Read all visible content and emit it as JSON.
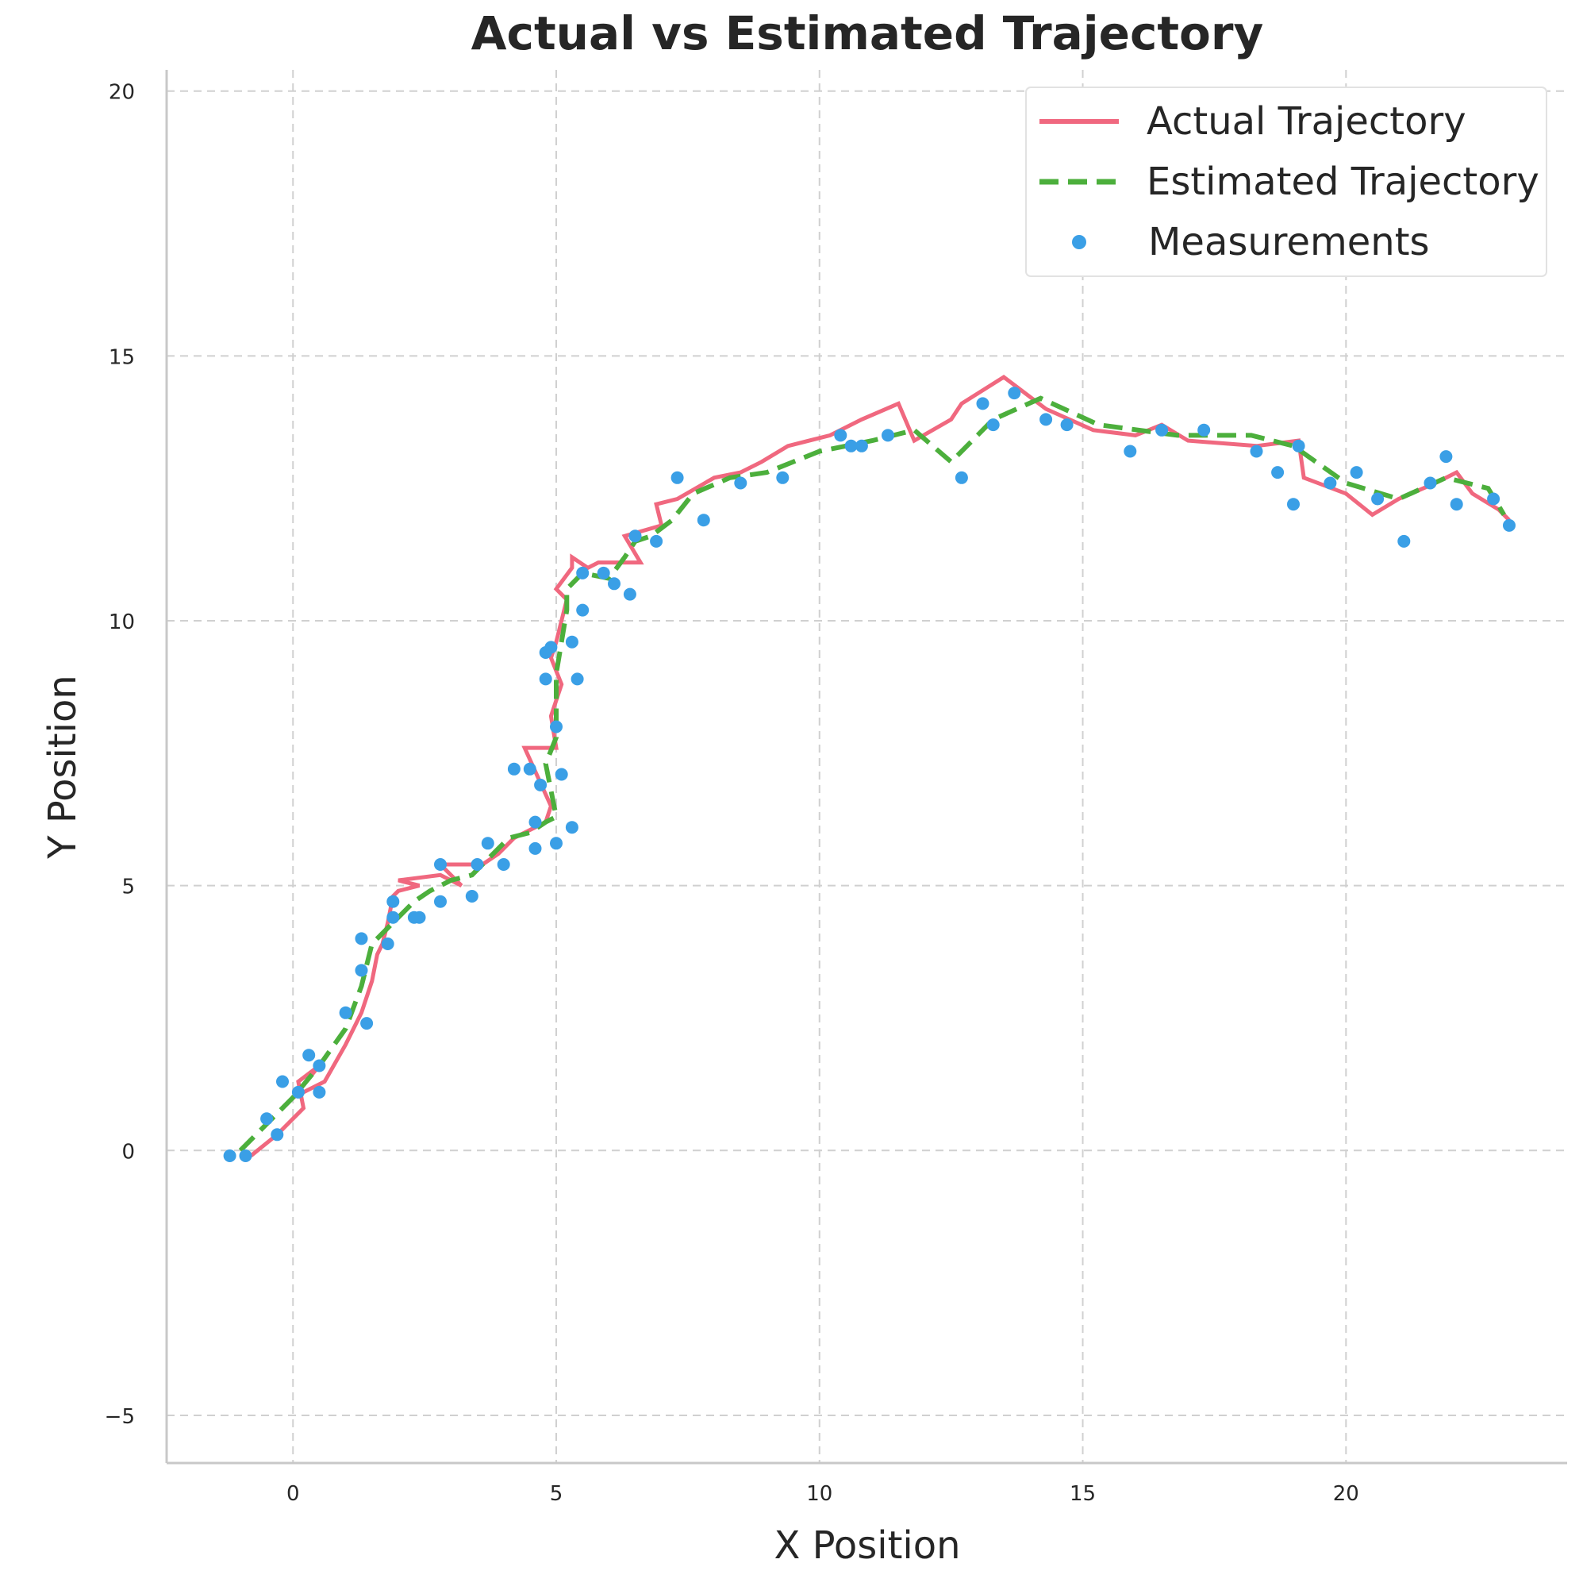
{
  "chart_data": {
    "type": "line",
    "title": "Actual vs Estimated Trajectory",
    "xlabel": "X Position",
    "ylabel": "Y Position",
    "xlim": [
      -2.4,
      24.2
    ],
    "ylim": [
      -5.9,
      20.4
    ],
    "x_ticks": [
      0,
      5,
      10,
      15,
      20
    ],
    "y_ticks": [
      -5,
      0,
      5,
      10,
      15,
      20
    ],
    "x_tick_labels": [
      "0",
      "5",
      "10",
      "15",
      "20"
    ],
    "y_tick_labels": [
      "−5",
      "0",
      "5",
      "10",
      "15",
      "20"
    ],
    "grid": true,
    "legend_position": "top-right",
    "colors": {
      "actual": "#f0687f",
      "estimated": "#4caf3c",
      "measurements": "#3a9fe6"
    },
    "series": [
      {
        "name": "Actual Trajectory",
        "kind": "line",
        "x": [
          -0.8,
          -0.3,
          0.2,
          0.1,
          0.5,
          0.0,
          0.6,
          1.0,
          1.3,
          1.5,
          1.6,
          1.7,
          1.8,
          1.9,
          2.0,
          2.4,
          2.0,
          2.8,
          3.2,
          2.8,
          3.6,
          3.9,
          4.2,
          4.4,
          4.8,
          4.9,
          4.4,
          5.0,
          4.9,
          5.1,
          4.9,
          5.0,
          5.2,
          5.0,
          5.3,
          5.3,
          5.6,
          5.8,
          6.6,
          6.3,
          7.0,
          6.9,
          7.3,
          8.0,
          8.5,
          8.9,
          9.4,
          10.2,
          10.8,
          11.5,
          11.8,
          12.5,
          12.7,
          13.5,
          14.3,
          15.2,
          16.0,
          16.5,
          17.0,
          18.3,
          19.1,
          19.2,
          20.0,
          20.5,
          21.0,
          21.7,
          22.1,
          22.4,
          22.9,
          23.1
        ],
        "y": [
          -0.1,
          0.3,
          0.8,
          1.3,
          1.6,
          1.0,
          1.3,
          2.0,
          2.6,
          3.2,
          3.7,
          3.9,
          4.3,
          4.8,
          4.9,
          5.0,
          5.1,
          5.2,
          5.0,
          5.4,
          5.4,
          5.6,
          5.9,
          6.0,
          6.2,
          6.5,
          7.6,
          7.6,
          8.2,
          8.8,
          9.3,
          9.6,
          10.4,
          10.6,
          11.0,
          11.2,
          11.0,
          11.1,
          11.1,
          11.6,
          11.8,
          12.2,
          12.3,
          12.7,
          12.8,
          13.0,
          13.3,
          13.5,
          13.8,
          14.1,
          13.4,
          13.8,
          14.1,
          14.6,
          14.0,
          13.6,
          13.5,
          13.7,
          13.4,
          13.3,
          13.4,
          12.7,
          12.4,
          12.0,
          12.3,
          12.6,
          12.8,
          12.4,
          12.1,
          11.9
        ]
      },
      {
        "name": "Estimated Trajectory",
        "kind": "dashed-line",
        "x": [
          -1.0,
          -0.5,
          0.0,
          0.5,
          1.0,
          1.3,
          1.5,
          1.9,
          2.3,
          2.6,
          3.0,
          3.4,
          3.7,
          4.1,
          4.5,
          4.8,
          5.0,
          4.8,
          5.0,
          5.0,
          5.2,
          5.2,
          5.5,
          6.0,
          6.3,
          6.5,
          6.8,
          7.2,
          7.6,
          8.3,
          9.0,
          10.0,
          11.0,
          11.8,
          12.5,
          13.3,
          14.2,
          15.3,
          16.8,
          18.2,
          19.0,
          20.0,
          21.0,
          21.9,
          22.7,
          23.0
        ],
        "y": [
          0.0,
          0.5,
          1.0,
          1.6,
          2.3,
          3.1,
          3.9,
          4.3,
          4.7,
          4.9,
          5.1,
          5.2,
          5.5,
          5.9,
          6.0,
          6.2,
          6.3,
          7.3,
          7.8,
          9.0,
          10.2,
          10.6,
          10.9,
          10.8,
          11.2,
          11.5,
          11.6,
          11.9,
          12.4,
          12.7,
          12.8,
          13.2,
          13.4,
          13.6,
          13.0,
          13.8,
          14.2,
          13.7,
          13.5,
          13.5,
          13.3,
          12.6,
          12.3,
          12.7,
          12.5,
          12.0
        ]
      },
      {
        "name": "Measurements",
        "kind": "scatter",
        "x": [
          -1.2,
          -0.9,
          -0.5,
          -0.3,
          -0.2,
          0.1,
          0.3,
          0.5,
          0.5,
          1.0,
          1.3,
          1.3,
          1.4,
          1.8,
          1.9,
          1.9,
          2.3,
          2.4,
          2.8,
          2.8,
          3.4,
          3.5,
          3.7,
          4.0,
          4.2,
          4.5,
          4.6,
          4.6,
          4.7,
          4.8,
          4.8,
          4.9,
          5.0,
          5.0,
          5.1,
          5.3,
          5.3,
          5.4,
          5.5,
          5.5,
          5.9,
          6.1,
          6.4,
          6.5,
          6.9,
          7.3,
          7.8,
          8.5,
          9.3,
          10.4,
          10.6,
          10.8,
          11.3,
          12.7,
          13.1,
          13.3,
          13.7,
          14.3,
          14.7,
          15.9,
          16.5,
          17.3,
          18.3,
          18.7,
          19.0,
          19.1,
          19.7,
          20.2,
          20.6,
          21.1,
          21.6,
          21.9,
          22.1,
          22.8,
          23.1
        ],
        "y": [
          -0.1,
          -0.1,
          0.6,
          0.3,
          1.3,
          1.1,
          1.8,
          1.6,
          1.1,
          2.6,
          3.4,
          4.0,
          2.4,
          3.9,
          4.7,
          4.4,
          4.4,
          4.4,
          4.7,
          5.4,
          4.8,
          5.4,
          5.8,
          5.4,
          7.2,
          7.2,
          6.2,
          5.7,
          6.9,
          8.9,
          9.4,
          9.5,
          8.0,
          5.8,
          7.1,
          9.6,
          6.1,
          8.9,
          10.2,
          10.9,
          10.9,
          10.7,
          10.5,
          11.6,
          11.5,
          12.7,
          11.9,
          12.6,
          12.7,
          13.5,
          13.3,
          13.3,
          13.5,
          12.7,
          14.1,
          13.7,
          14.3,
          13.8,
          13.7,
          13.2,
          13.6,
          13.6,
          13.2,
          12.8,
          12.2,
          13.3,
          12.6,
          12.8,
          12.3,
          11.5,
          12.6,
          13.1,
          12.2,
          12.3,
          11.8
        ]
      }
    ]
  }
}
